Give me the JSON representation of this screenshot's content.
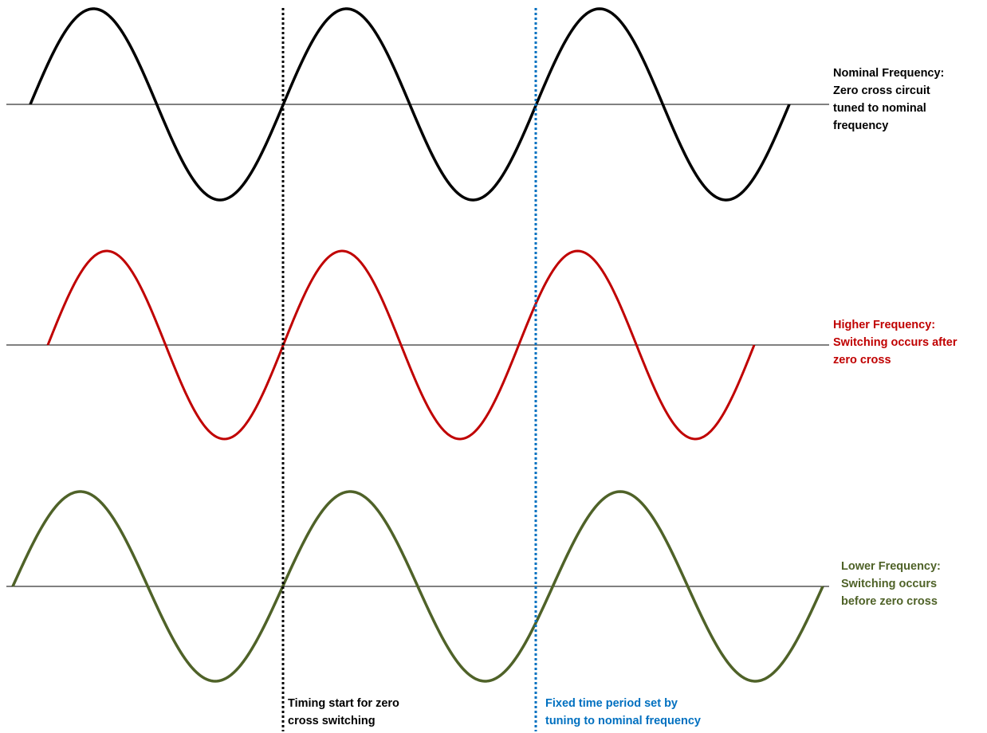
{
  "colors": {
    "nominal": "#000000",
    "higher": "#c00000",
    "lower": "#4f6228",
    "timing_marker": "#000000",
    "period_marker": "#0070c0",
    "axis": "#000000"
  },
  "waves": {
    "nominal": {
      "cycles": 3,
      "label_line1": "Nominal Frequency:",
      "label_line2": "Zero cross circuit",
      "label_line3": "tuned to nominal",
      "label_line4": "frequency"
    },
    "higher": {
      "cycles": 3,
      "label_line1": "Higher Frequency:",
      "label_line2": "Switching occurs after",
      "label_line3": "zero cross"
    },
    "lower": {
      "cycles": 3,
      "label_line1": "Lower Frequency:",
      "label_line2": "Switching occurs",
      "label_line3": "before zero cross"
    }
  },
  "markers": {
    "timing": {
      "line1": "Timing start for zero",
      "line2": "cross switching"
    },
    "period": {
      "line1": "Fixed time period set by",
      "line2": "tuning to nominal frequency"
    }
  }
}
